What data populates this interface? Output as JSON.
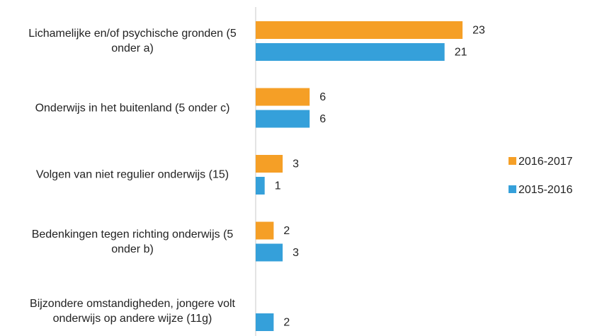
{
  "chart_data": {
    "type": "bar",
    "orientation": "horizontal",
    "categories": [
      "Lichamelijke en/of psychische gronden (5 onder a)",
      "Onderwijs in het buitenland (5 onder c)",
      "Volgen van niet regulier onderwijs (15)",
      "Bedenkingen tegen richting onderwijs (5 onder b)",
      "Bijzondere omstandigheden, jongere volt onderwijs op andere wijze (11g)"
    ],
    "series": [
      {
        "name": "2016-2017",
        "color": "#f59f26",
        "values": [
          23,
          6,
          3,
          2,
          null
        ]
      },
      {
        "name": "2015-2016",
        "color": "#35a0da",
        "values": [
          21,
          6,
          1,
          3,
          2
        ]
      }
    ],
    "legend": "right"
  }
}
